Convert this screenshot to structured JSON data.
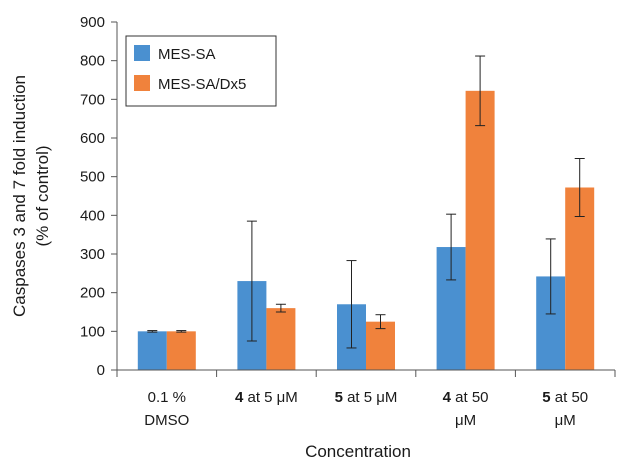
{
  "chart_data": {
    "type": "bar",
    "title": "",
    "xlabel": "Concentration",
    "ylabel_lines": [
      "Caspases 3 and 7 fold induction",
      "(% of control)"
    ],
    "ylim": [
      0,
      900
    ],
    "yticks": [
      0,
      100,
      200,
      300,
      400,
      500,
      600,
      700,
      800,
      900
    ],
    "grid": false,
    "legend_position": "top-left",
    "categories": [
      {
        "line1": [
          {
            "text": "0.1 %",
            "bold": false
          }
        ],
        "line2": [
          {
            "text": "DMSO",
            "bold": false
          }
        ]
      },
      {
        "line1": [
          {
            "text": "4",
            "bold": true
          },
          {
            "text": " at 5 μM",
            "bold": false
          }
        ],
        "line2": []
      },
      {
        "line1": [
          {
            "text": "5",
            "bold": true
          },
          {
            "text": " at 5 μM",
            "bold": false
          }
        ],
        "line2": []
      },
      {
        "line1": [
          {
            "text": "4",
            "bold": true
          },
          {
            "text": " at 50",
            "bold": false
          }
        ],
        "line2": [
          {
            "text": "μM",
            "bold": false
          }
        ]
      },
      {
        "line1": [
          {
            "text": "5",
            "bold": true
          },
          {
            "text": " at 50",
            "bold": false
          }
        ],
        "line2": [
          {
            "text": "μM",
            "bold": false
          }
        ]
      }
    ],
    "series": [
      {
        "name": "MES-SA",
        "color": "#4a90d0",
        "values": [
          100,
          230,
          170,
          318,
          242
        ],
        "errors": [
          2,
          155,
          113,
          85,
          97
        ]
      },
      {
        "name": "MES-SA/Dx5",
        "color": "#f0823c",
        "values": [
          100,
          160,
          125,
          722,
          472
        ],
        "errors": [
          2,
          10,
          18,
          90,
          75
        ]
      }
    ]
  }
}
